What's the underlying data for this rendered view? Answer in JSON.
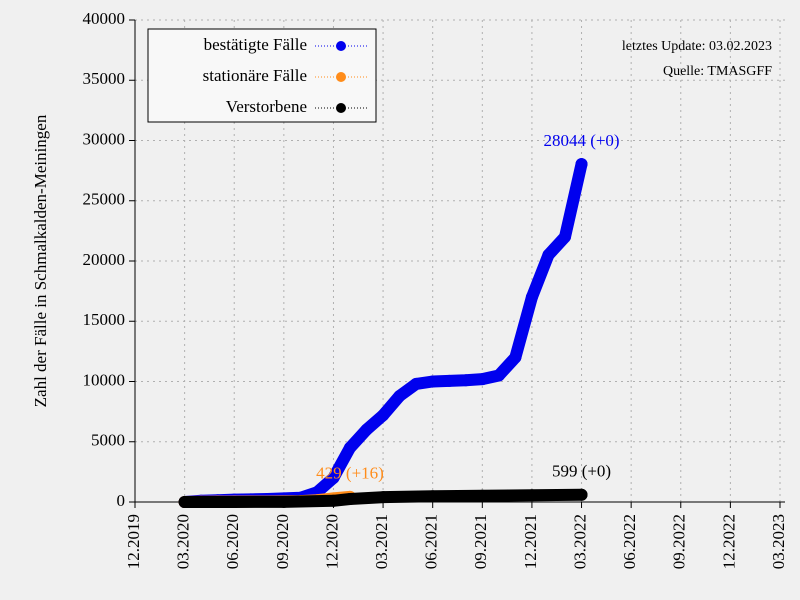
{
  "chart_data": {
    "type": "line",
    "y_label": "Zahl der Fälle in Schmalkalden-Meiningen",
    "annotations": [
      "letztes Update: 03.02.2023",
      "Quelle: TMASGFF"
    ],
    "xlim": [
      "12.2019",
      "03.2023"
    ],
    "xticks": [
      "12.2019",
      "03.2020",
      "06.2020",
      "09.2020",
      "12.2020",
      "03.2021",
      "06.2021",
      "09.2021",
      "12.2021",
      "03.2022",
      "06.2022",
      "09.2022",
      "12.2022",
      "03.2023"
    ],
    "ylim": [
      0,
      40000
    ],
    "yticks": [
      0,
      5000,
      10000,
      15000,
      20000,
      25000,
      30000,
      35000,
      40000
    ],
    "grid": true,
    "legend": "top-left",
    "series": [
      {
        "name": "bestätigte Fälle",
        "color": "#0000ee",
        "x": [
          "03.2020",
          "04.2020",
          "05.2020",
          "06.2020",
          "07.2020",
          "08.2020",
          "09.2020",
          "10.2020",
          "11.2020",
          "12.2020",
          "01.2021",
          "02.2021",
          "03.2021",
          "04.2021",
          "05.2021",
          "06.2021",
          "07.2021",
          "08.2021",
          "09.2021",
          "10.2021",
          "11.2021",
          "12.2021",
          "01.2022",
          "02.2022",
          "03.2022"
        ],
        "values": [
          0,
          100,
          150,
          200,
          220,
          250,
          300,
          350,
          800,
          2000,
          4500,
          6000,
          7200,
          8800,
          9800,
          10000,
          10050,
          10100,
          10200,
          10500,
          12000,
          17000,
          20500,
          22000,
          28044
        ],
        "value_labels": [
          null,
          null,
          null,
          null,
          null,
          null,
          null,
          null,
          null,
          null,
          null,
          null,
          null,
          null,
          null,
          null,
          null,
          null,
          null,
          null,
          null,
          null,
          null,
          null,
          "28044 (+0)"
        ]
      },
      {
        "name": "stationäre Fälle",
        "color": "#ff8c1a",
        "x": [
          "03.2020",
          "04.2020",
          "05.2020",
          "06.2020",
          "07.2020",
          "08.2020",
          "09.2020",
          "10.2020",
          "11.2020",
          "12.2020",
          "01.2021"
        ],
        "values": [
          0,
          20,
          30,
          35,
          40,
          45,
          50,
          70,
          150,
          300,
          429
        ],
        "value_labels": [
          null,
          null,
          null,
          null,
          null,
          null,
          null,
          null,
          null,
          null,
          "429 (+16)"
        ]
      },
      {
        "name": "Verstorbene",
        "color": "#000000",
        "x": [
          "03.2020",
          "06.2020",
          "09.2020",
          "12.2020",
          "01.2021",
          "03.2021",
          "06.2021",
          "09.2021",
          "12.2021",
          "03.2022"
        ],
        "values": [
          0,
          5,
          10,
          100,
          250,
          400,
          480,
          520,
          560,
          599
        ],
        "value_labels": [
          null,
          null,
          null,
          null,
          null,
          null,
          null,
          null,
          null,
          "599 (+0)"
        ]
      }
    ]
  }
}
